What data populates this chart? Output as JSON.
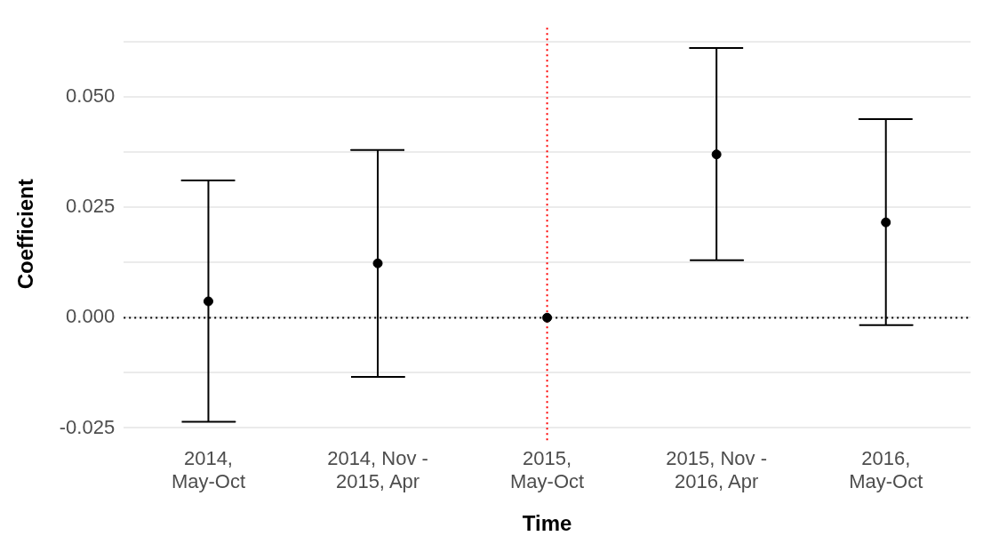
{
  "chart_data": {
    "type": "scatter",
    "xlabel": "Time",
    "ylabel": "Coefficient",
    "categories": [
      "2014,\nMay-Oct",
      "2014, Nov -\n2015, Apr",
      "2015,\nMay-Oct",
      "2015, Nov -\n2016, Apr",
      "2016,\nMay-Oct"
    ],
    "values": [
      0.0037,
      0.0123,
      0,
      0.037,
      0.0216
    ],
    "errors": [
      [
        -0.0236,
        0.0311
      ],
      [
        -0.0134,
        0.038
      ],
      null,
      [
        0.013,
        0.0611
      ],
      [
        -0.0017,
        0.045
      ]
    ],
    "color": "#000000",
    "marker": "circle",
    "ylim": [
      -0.0278,
      0.0657
    ],
    "yticks": [
      {
        "value": -0.025,
        "label": "-0.025"
      },
      {
        "value": -0.0125,
        "label": null
      },
      {
        "value": 0,
        "label": "0.000"
      },
      {
        "value": 0.0125,
        "label": null
      },
      {
        "value": 0.025,
        "label": "0.025"
      },
      {
        "value": 0.0375,
        "label": null
      },
      {
        "value": 0.05,
        "label": "0.050"
      },
      {
        "value": 0.0625,
        "label": null
      }
    ],
    "grid": "y",
    "ref_lines": [
      {
        "axis": "y",
        "value": 0,
        "color": "#000000",
        "line_style": "dotted"
      },
      {
        "axis": "x",
        "value": "2015,\nMay-Oct",
        "color": "#ff0000",
        "line_style": "dotted"
      }
    ]
  }
}
